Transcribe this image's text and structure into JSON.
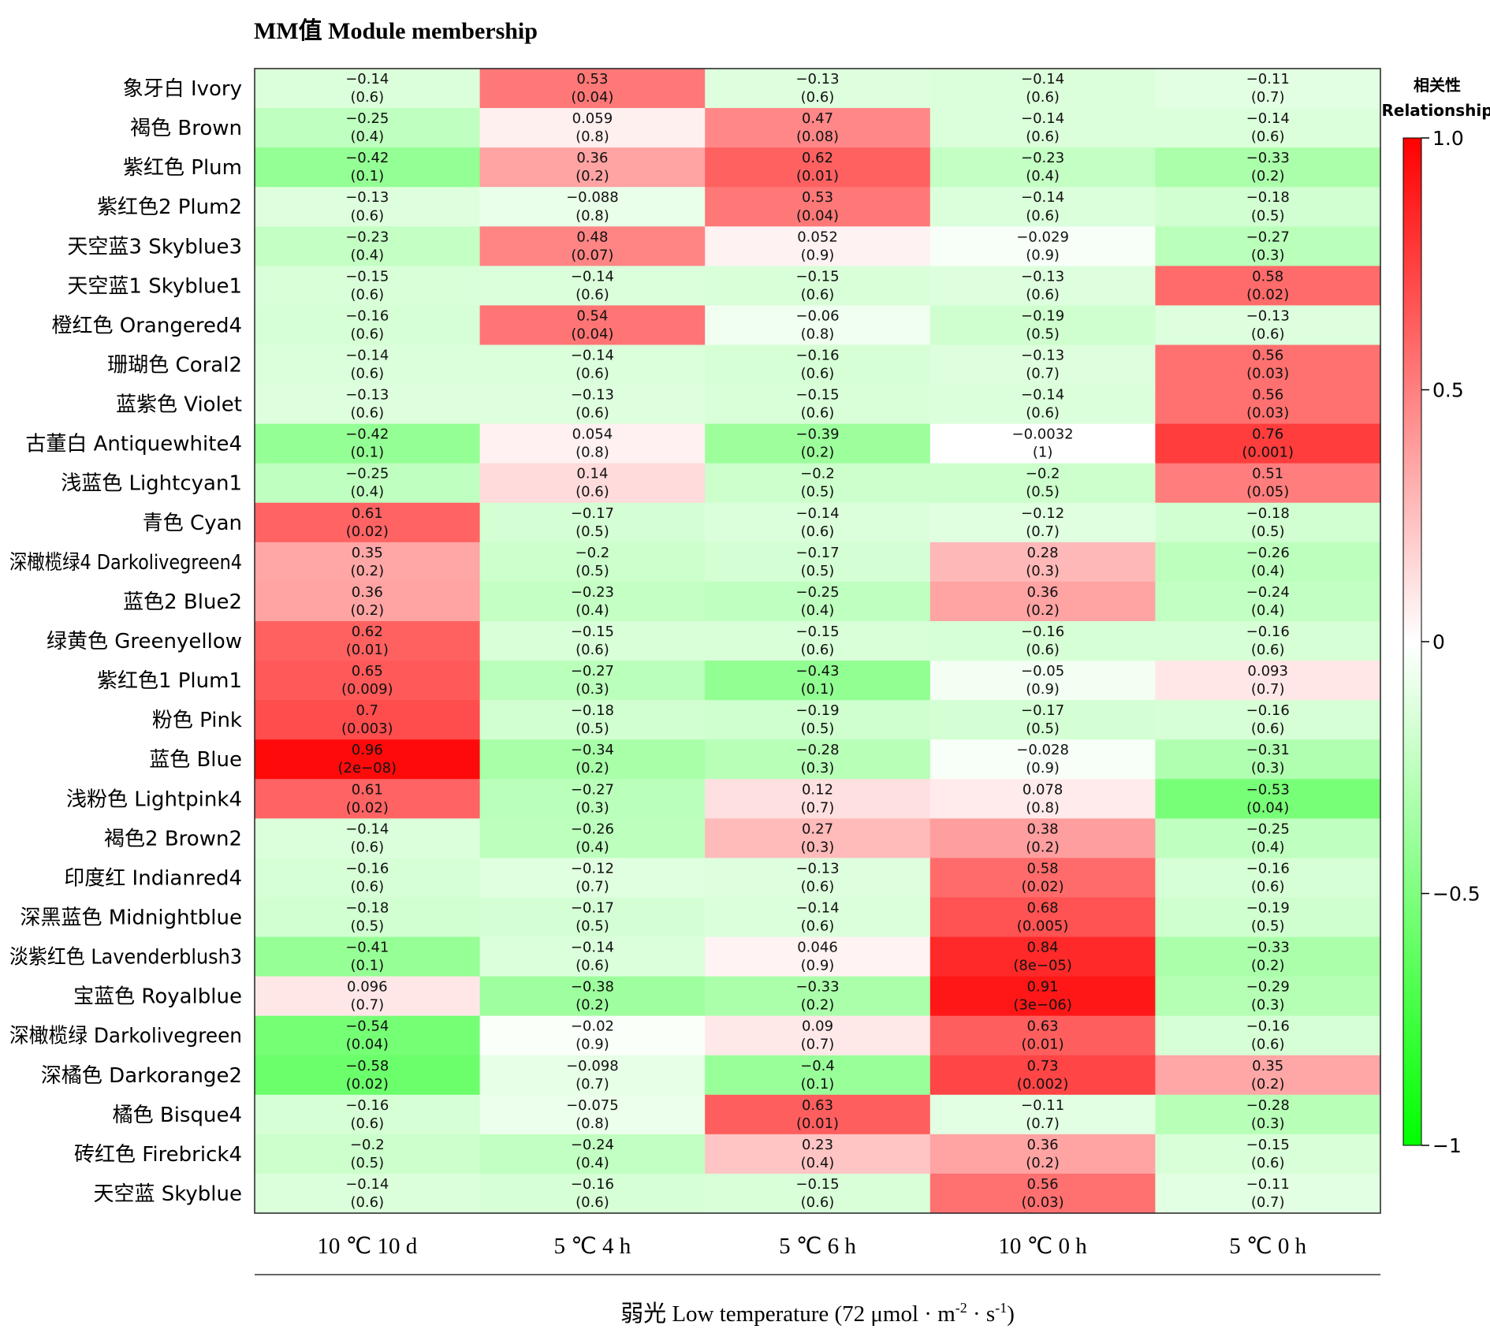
{
  "chart_data": {
    "type": "heatmap",
    "title": "MM值 Module membership",
    "xlabel": "弱光 Low temperature (72 μmol · m",
    "xlabel_exp1": "-2",
    "xlabel_mid": " · s",
    "xlabel_exp2": "-1",
    "xlabel_end": ")",
    "legend_title": [
      "相关性",
      "Relationship"
    ],
    "color_scale": {
      "min": -1,
      "max": 1,
      "low": "#00ff00",
      "mid": "#ffffff",
      "high": "#ff0000"
    },
    "colorbar_ticks": [
      "1.0",
      "0.5",
      "0",
      "−0.5",
      "−1"
    ],
    "colorbar_tick_values": [
      1,
      0.5,
      0,
      -0.5,
      -1
    ],
    "columns": [
      "10 ℃ 10 d",
      "5 ℃ 4 h",
      "5 ℃ 6 h",
      "10 ℃ 0 h",
      "5 ℃ 0 h"
    ],
    "rows": [
      "象牙白 Ivory",
      "褐色 Brown",
      "紫红色 Plum",
      "紫红色2 Plum2",
      "天空蓝3 Skyblue3",
      "天空蓝1 Skyblue1",
      "橙红色 Orangered4",
      "珊瑚色 Coral2",
      "蓝紫色 Violet",
      "古董白 Antiquewhite4",
      "浅蓝色 Lightcyan1",
      "青色 Cyan",
      "深橄榄绿4 Darkolivegreen4",
      "蓝色2 Blue2",
      "绿黄色 Greenyellow",
      "紫红色1 Plum1",
      "粉色 Pink",
      "蓝色 Blue",
      "浅粉色 Lightpink4",
      "褐色2 Brown2",
      "印度红 Indianred4",
      "深黑蓝色 Midnightblue",
      "淡紫红色 Lavenderblush3",
      "宝蓝色 Royalblue",
      "深橄榄绿 Darkolivegreen",
      "深橘色 Darkorange2",
      "橘色 Bisque4",
      "砖红色 Firebrick4",
      "天空蓝 Skyblue"
    ],
    "values": [
      [
        -0.14,
        0.53,
        -0.13,
        -0.14,
        -0.11
      ],
      [
        -0.25,
        0.059,
        0.47,
        -0.14,
        -0.14
      ],
      [
        -0.42,
        0.36,
        0.62,
        -0.23,
        -0.33
      ],
      [
        -0.13,
        -0.088,
        0.53,
        -0.14,
        -0.18
      ],
      [
        -0.23,
        0.48,
        0.052,
        -0.029,
        -0.27
      ],
      [
        -0.15,
        -0.14,
        -0.15,
        -0.13,
        0.58
      ],
      [
        -0.16,
        0.54,
        -0.06,
        -0.19,
        -0.13
      ],
      [
        -0.14,
        -0.14,
        -0.16,
        -0.13,
        0.56
      ],
      [
        -0.13,
        -0.13,
        -0.15,
        -0.14,
        0.56
      ],
      [
        -0.42,
        0.054,
        -0.39,
        -0.0032,
        0.76
      ],
      [
        -0.25,
        0.14,
        -0.2,
        -0.2,
        0.51
      ],
      [
        0.61,
        -0.17,
        -0.14,
        -0.12,
        -0.18
      ],
      [
        0.35,
        -0.2,
        -0.17,
        0.28,
        -0.26
      ],
      [
        0.36,
        -0.23,
        -0.25,
        0.36,
        -0.24
      ],
      [
        0.62,
        -0.15,
        -0.15,
        -0.16,
        -0.16
      ],
      [
        0.65,
        -0.27,
        -0.43,
        -0.05,
        0.093
      ],
      [
        0.7,
        -0.18,
        -0.19,
        -0.17,
        -0.16
      ],
      [
        0.96,
        -0.34,
        -0.28,
        -0.028,
        -0.31
      ],
      [
        0.61,
        -0.27,
        0.12,
        0.078,
        -0.53
      ],
      [
        -0.14,
        -0.26,
        0.27,
        0.38,
        -0.25
      ],
      [
        -0.16,
        -0.12,
        -0.13,
        0.58,
        -0.16
      ],
      [
        -0.18,
        -0.17,
        -0.14,
        0.68,
        -0.19
      ],
      [
        -0.41,
        -0.14,
        0.046,
        0.84,
        -0.33
      ],
      [
        0.096,
        -0.38,
        -0.33,
        0.91,
        -0.29
      ],
      [
        -0.54,
        -0.02,
        0.09,
        0.63,
        -0.16
      ],
      [
        -0.58,
        -0.098,
        -0.4,
        0.73,
        0.35
      ],
      [
        -0.16,
        -0.075,
        0.63,
        -0.11,
        -0.28
      ],
      [
        -0.2,
        -0.24,
        0.23,
        0.36,
        -0.15
      ],
      [
        -0.14,
        -0.16,
        -0.15,
        0.56,
        -0.11
      ]
    ],
    "value_labels": [
      [
        "−0.14",
        "0.53",
        "−0.13",
        "−0.14",
        "−0.11"
      ],
      [
        "−0.25",
        "0.059",
        "0.47",
        "−0.14",
        "−0.14"
      ],
      [
        "−0.42",
        "0.36",
        "0.62",
        "−0.23",
        "−0.33"
      ],
      [
        "−0.13",
        "−0.088",
        "0.53",
        "−0.14",
        "−0.18"
      ],
      [
        "−0.23",
        "0.48",
        "0.052",
        "−0.029",
        "−0.27"
      ],
      [
        "−0.15",
        "−0.14",
        "−0.15",
        "−0.13",
        "0.58"
      ],
      [
        "−0.16",
        "0.54",
        "−0.06",
        "−0.19",
        "−0.13"
      ],
      [
        "−0.14",
        "−0.14",
        "−0.16",
        "−0.13",
        "0.56"
      ],
      [
        "−0.13",
        "−0.13",
        "−0.15",
        "−0.14",
        "0.56"
      ],
      [
        "−0.42",
        "0.054",
        "−0.39",
        "−0.0032",
        "0.76"
      ],
      [
        "−0.25",
        "0.14",
        "−0.2",
        "−0.2",
        "0.51"
      ],
      [
        "0.61",
        "−0.17",
        "−0.14",
        "−0.12",
        "−0.18"
      ],
      [
        "0.35",
        "−0.2",
        "−0.17",
        "0.28",
        "−0.26"
      ],
      [
        "0.36",
        "−0.23",
        "−0.25",
        "0.36",
        "−0.24"
      ],
      [
        "0.62",
        "−0.15",
        "−0.15",
        "−0.16",
        "−0.16"
      ],
      [
        "0.65",
        "−0.27",
        "−0.43",
        "−0.05",
        "0.093"
      ],
      [
        "0.7",
        "−0.18",
        "−0.19",
        "−0.17",
        "−0.16"
      ],
      [
        "0.96",
        "−0.34",
        "−0.28",
        "−0.028",
        "−0.31"
      ],
      [
        "0.61",
        "−0.27",
        "0.12",
        "0.078",
        "−0.53"
      ],
      [
        "−0.14",
        "−0.26",
        "0.27",
        "0.38",
        "−0.25"
      ],
      [
        "−0.16",
        "−0.12",
        "−0.13",
        "0.58",
        "−0.16"
      ],
      [
        "−0.18",
        "−0.17",
        "−0.14",
        "0.68",
        "−0.19"
      ],
      [
        "−0.41",
        "−0.14",
        "0.046",
        "0.84",
        "−0.33"
      ],
      [
        "0.096",
        "−0.38",
        "−0.33",
        "0.91",
        "−0.29"
      ],
      [
        "−0.54",
        "−0.02",
        "0.09",
        "0.63",
        "−0.16"
      ],
      [
        "−0.58",
        "−0.098",
        "−0.4",
        "0.73",
        "0.35"
      ],
      [
        "−0.16",
        "−0.075",
        "0.63",
        "−0.11",
        "−0.28"
      ],
      [
        "−0.2",
        "−0.24",
        "0.23",
        "0.36",
        "−0.15"
      ],
      [
        "−0.14",
        "−0.16",
        "−0.15",
        "0.56",
        "−0.11"
      ]
    ],
    "p_labels": [
      [
        "(0.6)",
        "(0.04)",
        "(0.6)",
        "(0.6)",
        "(0.7)"
      ],
      [
        "(0.4)",
        "(0.8)",
        "(0.08)",
        "(0.6)",
        "(0.6)"
      ],
      [
        "(0.1)",
        "(0.2)",
        "(0.01)",
        "(0.4)",
        "(0.2)"
      ],
      [
        "(0.6)",
        "(0.8)",
        "(0.04)",
        "(0.6)",
        "(0.5)"
      ],
      [
        "(0.4)",
        "(0.07)",
        "(0.9)",
        "(0.9)",
        "(0.3)"
      ],
      [
        "(0.6)",
        "(0.6)",
        "(0.6)",
        "(0.6)",
        "(0.02)"
      ],
      [
        "(0.6)",
        "(0.04)",
        "(0.8)",
        "(0.5)",
        "(0.6)"
      ],
      [
        "(0.6)",
        "(0.6)",
        "(0.6)",
        "(0.7)",
        "(0.03)"
      ],
      [
        "(0.6)",
        "(0.6)",
        "(0.6)",
        "(0.6)",
        "(0.03)"
      ],
      [
        "(0.1)",
        "(0.8)",
        "(0.2)",
        "(1)",
        "(0.001)"
      ],
      [
        "(0.4)",
        "(0.6)",
        "(0.5)",
        "(0.5)",
        "(0.05)"
      ],
      [
        "(0.02)",
        "(0.5)",
        "(0.6)",
        "(0.7)",
        "(0.5)"
      ],
      [
        "(0.2)",
        "(0.5)",
        "(0.5)",
        "(0.3)",
        "(0.4)"
      ],
      [
        "(0.2)",
        "(0.4)",
        "(0.4)",
        "(0.2)",
        "(0.4)"
      ],
      [
        "(0.01)",
        "(0.6)",
        "(0.6)",
        "(0.6)",
        "(0.6)"
      ],
      [
        "(0.009)",
        "(0.3)",
        "(0.1)",
        "(0.9)",
        "(0.7)"
      ],
      [
        "(0.003)",
        "(0.5)",
        "(0.5)",
        "(0.5)",
        "(0.6)"
      ],
      [
        "(2e−08)",
        "(0.2)",
        "(0.3)",
        "(0.9)",
        "(0.3)"
      ],
      [
        "(0.02)",
        "(0.3)",
        "(0.7)",
        "(0.8)",
        "(0.04)"
      ],
      [
        "(0.6)",
        "(0.4)",
        "(0.3)",
        "(0.2)",
        "(0.4)"
      ],
      [
        "(0.6)",
        "(0.7)",
        "(0.6)",
        "(0.02)",
        "(0.6)"
      ],
      [
        "(0.5)",
        "(0.5)",
        "(0.6)",
        "(0.005)",
        "(0.5)"
      ],
      [
        "(0.1)",
        "(0.6)",
        "(0.9)",
        "(8e−05)",
        "(0.2)"
      ],
      [
        "(0.7)",
        "(0.2)",
        "(0.2)",
        "(3e−06)",
        "(0.3)"
      ],
      [
        "(0.04)",
        "(0.9)",
        "(0.7)",
        "(0.01)",
        "(0.6)"
      ],
      [
        "(0.02)",
        "(0.7)",
        "(0.1)",
        "(0.002)",
        "(0.2)"
      ],
      [
        "(0.6)",
        "(0.8)",
        "(0.01)",
        "(0.7)",
        "(0.3)"
      ],
      [
        "(0.5)",
        "(0.4)",
        "(0.4)",
        "(0.2)",
        "(0.6)"
      ],
      [
        "(0.6)",
        "(0.6)",
        "(0.6)",
        "(0.03)",
        "(0.7)"
      ]
    ]
  }
}
